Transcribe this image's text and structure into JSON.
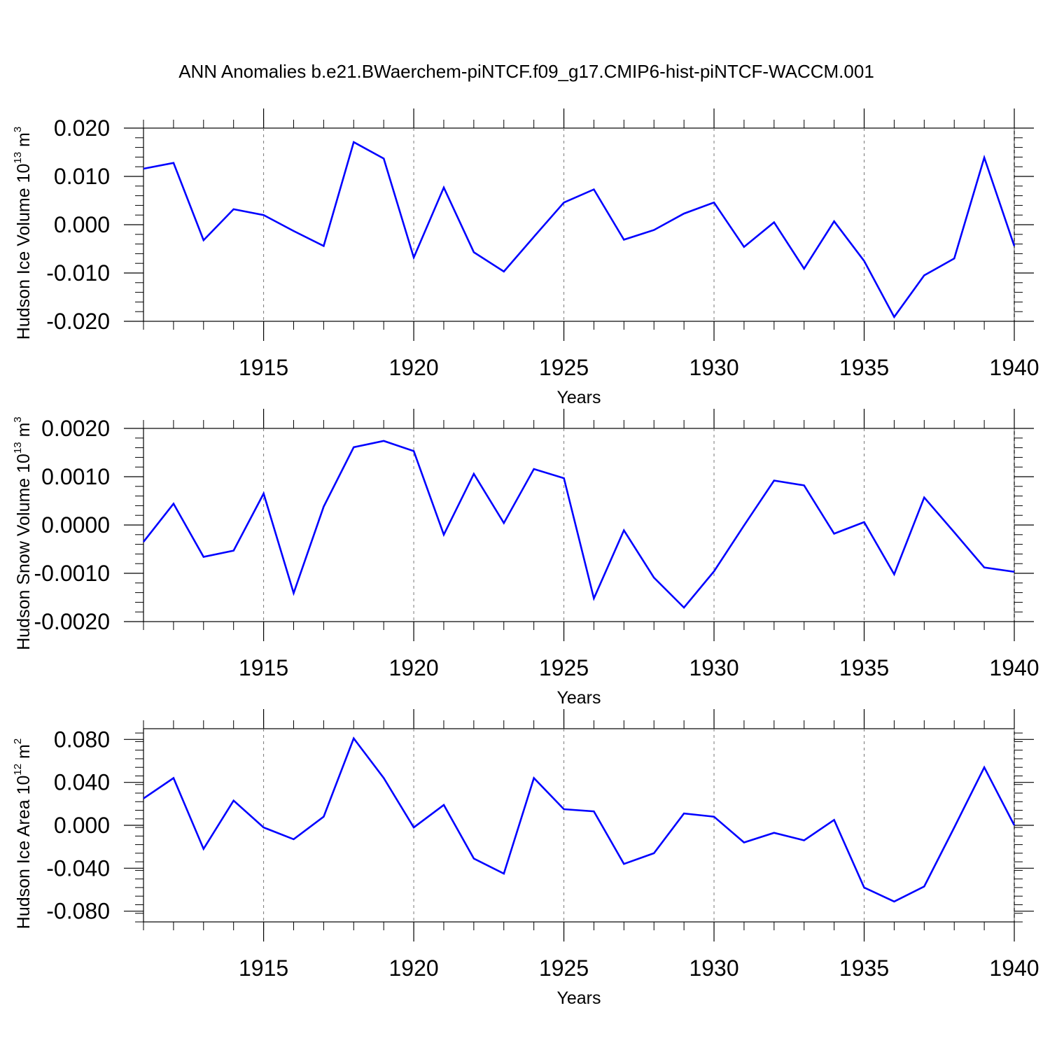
{
  "title": "ANN Anomalies b.e21.BWaerchem-piNTCF.f09_g17.CMIP6-hist-piNTCF-WACCM.001",
  "line_color": "#0000ff",
  "chart_data": [
    {
      "type": "line",
      "ylabel": "Hudson Ice Volume 10",
      "ylabel_exp": "13",
      "ylabel_unit": " m",
      "ylabel_unit_exp": "3",
      "xlabel": "Years",
      "xlim": [
        1911,
        1940
      ],
      "ylim": [
        -0.02,
        0.02
      ],
      "yticks": [
        -0.02,
        -0.01,
        0.0,
        0.01,
        0.02
      ],
      "ytick_labels": [
        "-0.020",
        "-0.010",
        "0.000",
        "0.010",
        "0.020"
      ],
      "xticks": [
        1915,
        1920,
        1925,
        1930,
        1935,
        1940
      ],
      "xtick_labels": [
        "1915",
        "1920",
        "1925",
        "1930",
        "1935",
        "1940"
      ],
      "x": [
        1911,
        1912,
        1913,
        1914,
        1915,
        1916,
        1917,
        1918,
        1919,
        1920,
        1921,
        1922,
        1923,
        1924,
        1925,
        1926,
        1927,
        1928,
        1929,
        1930,
        1931,
        1932,
        1933,
        1934,
        1935,
        1936,
        1937,
        1938,
        1939,
        1940
      ],
      "values": [
        0.0116,
        0.0128,
        -0.0032,
        0.0032,
        0.002,
        -0.0013,
        -0.0044,
        0.0171,
        0.0137,
        -0.0068,
        0.0077,
        -0.0057,
        -0.0097,
        -0.0025,
        0.0046,
        0.0073,
        -0.0031,
        -0.0011,
        0.0023,
        0.0046,
        -0.0046,
        0.0005,
        -0.0091,
        0.0007,
        -0.0075,
        -0.0191,
        -0.0105,
        -0.007,
        0.0139,
        -0.0044
      ]
    },
    {
      "type": "line",
      "ylabel": "Hudson Snow Volume 10",
      "ylabel_exp": "13",
      "ylabel_unit": " m",
      "ylabel_unit_exp": "3",
      "xlabel": "Years",
      "xlim": [
        1911,
        1940
      ],
      "ylim": [
        -0.002,
        0.002
      ],
      "yticks": [
        -0.002,
        -0.001,
        0.0,
        0.001,
        0.002
      ],
      "ytick_labels": [
        "-0.0020",
        "-0.0010",
        "0.0000",
        "0.0010",
        "0.0020"
      ],
      "xticks": [
        1915,
        1920,
        1925,
        1930,
        1935,
        1940
      ],
      "xtick_labels": [
        "1915",
        "1920",
        "1925",
        "1930",
        "1935",
        "1940"
      ],
      "x": [
        1911,
        1912,
        1913,
        1914,
        1915,
        1916,
        1917,
        1918,
        1919,
        1920,
        1921,
        1922,
        1923,
        1924,
        1925,
        1926,
        1927,
        1928,
        1929,
        1930,
        1931,
        1932,
        1933,
        1934,
        1935,
        1936,
        1937,
        1938,
        1939,
        1940
      ],
      "values": [
        -0.00035,
        0.00044,
        -0.00066,
        -0.00053,
        0.00065,
        -0.00141,
        0.00038,
        0.00161,
        0.00174,
        0.00153,
        -0.0002,
        0.00106,
        4e-05,
        0.00116,
        0.00097,
        -0.00152,
        -0.00011,
        -0.00109,
        -0.00171,
        -0.00096,
        -1e-05,
        0.00092,
        0.00082,
        -0.00018,
        6e-05,
        -0.00102,
        0.00057,
        -0.00015,
        -0.00088,
        -0.00097
      ]
    },
    {
      "type": "line",
      "ylabel": "Hudson Ice Area 10",
      "ylabel_exp": "12",
      "ylabel_unit": " m",
      "ylabel_unit_exp": "2",
      "xlabel": "Years",
      "xlim": [
        1911,
        1940
      ],
      "ylim": [
        -0.09,
        0.09
      ],
      "yticks": [
        -0.08,
        -0.04,
        0.0,
        0.04,
        0.08
      ],
      "ytick_labels": [
        "-0.080",
        "-0.040",
        "0.000",
        "0.040",
        "0.080"
      ],
      "xticks": [
        1915,
        1920,
        1925,
        1930,
        1935,
        1940
      ],
      "xtick_labels": [
        "1915",
        "1920",
        "1925",
        "1930",
        "1935",
        "1940"
      ],
      "x": [
        1911,
        1912,
        1913,
        1914,
        1915,
        1916,
        1917,
        1918,
        1919,
        1920,
        1921,
        1922,
        1923,
        1924,
        1925,
        1926,
        1927,
        1928,
        1929,
        1930,
        1931,
        1932,
        1933,
        1934,
        1935,
        1936,
        1937,
        1938,
        1939,
        1940
      ],
      "values": [
        0.025,
        0.044,
        -0.022,
        0.023,
        -0.002,
        -0.013,
        0.008,
        0.081,
        0.044,
        -0.002,
        0.019,
        -0.031,
        -0.045,
        0.044,
        0.015,
        0.013,
        -0.036,
        -0.026,
        0.011,
        0.008,
        -0.016,
        -0.007,
        -0.014,
        0.005,
        -0.058,
        -0.071,
        -0.057,
        -0.002,
        0.054,
        0.0
      ]
    }
  ]
}
